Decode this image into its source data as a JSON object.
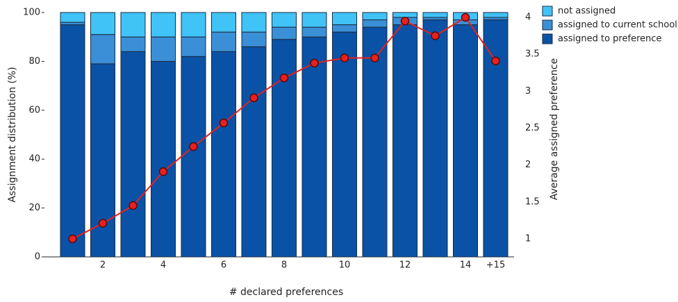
{
  "chart_data": {
    "type": "stacked-bar-line",
    "xlabel": "# declared preferences",
    "ylabel": "Assignment distribution (%)",
    "y2label": "Average assigned preference",
    "categories": [
      null,
      "2",
      null,
      "4",
      null,
      "6",
      null,
      "8",
      null,
      "10",
      null,
      "12",
      null,
      "14",
      "+15"
    ],
    "series": [
      {
        "name": "assigned to preference",
        "color": "#0a52a5",
        "values": [
          95,
          79,
          84,
          80,
          82,
          84,
          86,
          89,
          90,
          92,
          94,
          95,
          97,
          95,
          97
        ]
      },
      {
        "name": "assigned to current school",
        "color": "#3a8fd6",
        "values": [
          1,
          12,
          6,
          10,
          8,
          8,
          6,
          5,
          4,
          3,
          3,
          3,
          1,
          2,
          1
        ]
      },
      {
        "name": "not assigned",
        "color": "#40c3f7",
        "values": [
          4,
          9,
          10,
          10,
          10,
          8,
          8,
          6,
          6,
          5,
          3,
          2,
          2,
          3,
          2
        ]
      },
      {
        "type": "line",
        "axis": "y2",
        "color": "#e8201e",
        "values": [
          1.0,
          1.21,
          1.45,
          1.91,
          2.25,
          2.57,
          2.91,
          3.18,
          3.38,
          3.45,
          3.45,
          3.95,
          3.75,
          4.0,
          3.41
        ]
      }
    ],
    "ylim": [
      0,
      100
    ],
    "yticks": [
      0,
      20,
      40,
      60,
      80,
      100
    ],
    "y2lim": [
      0.755,
      4.066
    ],
    "y2ticks": [
      1,
      1.5,
      2,
      2.5,
      3,
      3.5,
      4
    ],
    "legend": "top-right",
    "grid": false
  }
}
